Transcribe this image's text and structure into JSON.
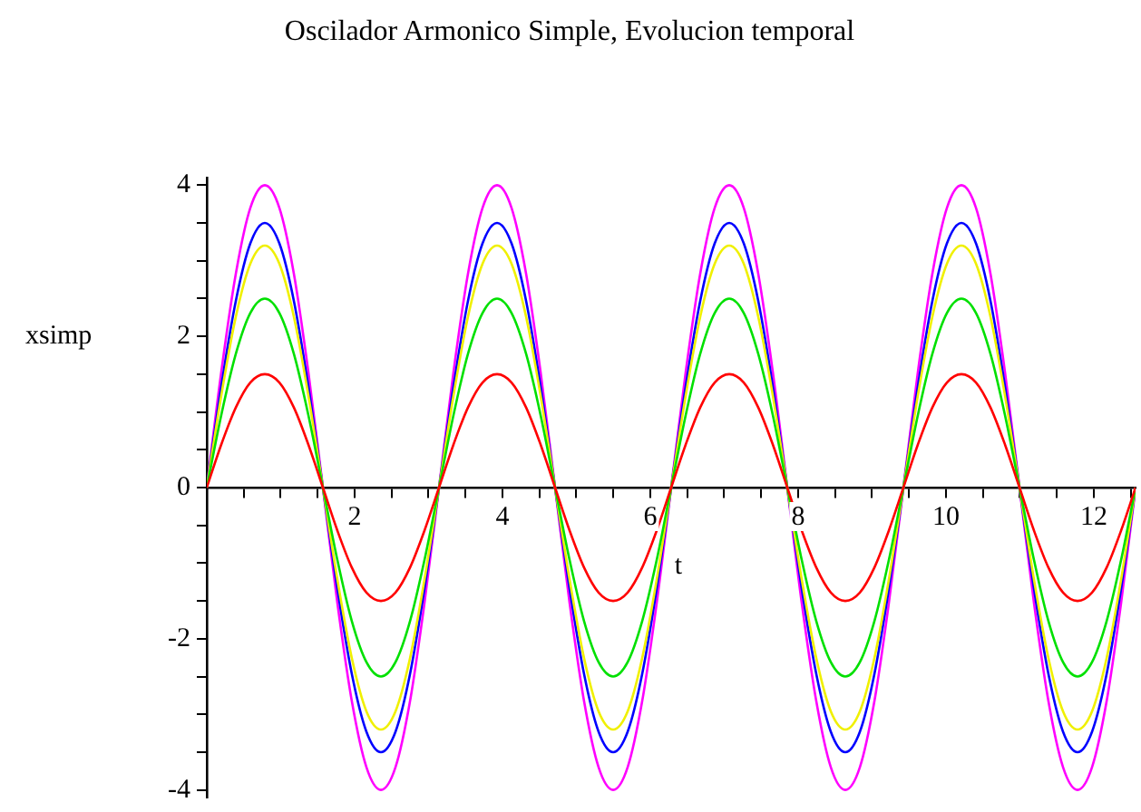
{
  "chart_data": {
    "type": "line",
    "title": "Oscilador Armonico Simple, Evolucion temporal",
    "xlabel": "t",
    "ylabel": "xsimp",
    "x": [
      0,
      0.196,
      0.393,
      0.589,
      0.785,
      0.982,
      1.178,
      1.374,
      1.571,
      1.767,
      1.963,
      2.16,
      2.356,
      2.553,
      2.749,
      2.945,
      3.142,
      3.338,
      3.534,
      3.731,
      3.927,
      4.123,
      4.32,
      4.516,
      4.712,
      4.909,
      5.105,
      5.301,
      5.498,
      5.694,
      5.89,
      6.087,
      6.283,
      6.48,
      6.676,
      6.872,
      7.069,
      7.265,
      7.461,
      7.658,
      7.854,
      8.05,
      8.247,
      8.443,
      8.639,
      8.836,
      9.032,
      9.228,
      9.425,
      9.621,
      9.817,
      10.014,
      10.21,
      10.407,
      10.603,
      10.799,
      10.996,
      11.192,
      11.388,
      11.585,
      11.781,
      11.977,
      12.174,
      12.37,
      12.566
    ],
    "series": [
      {
        "color": "#ff0000",
        "values": [
          0,
          0.57,
          1.06,
          1.39,
          1.5,
          1.39,
          1.06,
          0.57,
          0,
          -0.57,
          -1.06,
          -1.39,
          -1.5,
          -1.39,
          -1.06,
          -0.57,
          0,
          0.57,
          1.06,
          1.39,
          1.5,
          1.39,
          1.06,
          0.57,
          0,
          -0.57,
          -1.06,
          -1.39,
          -1.5,
          -1.39,
          -1.06,
          -0.57,
          0,
          0.57,
          1.06,
          1.39,
          1.5,
          1.39,
          1.06,
          0.57,
          0,
          -0.57,
          -1.06,
          -1.39,
          -1.5,
          -1.39,
          -1.06,
          -0.57,
          0,
          0.57,
          1.06,
          1.39,
          1.5,
          1.39,
          1.06,
          0.57,
          0,
          -0.57,
          -1.06,
          -1.39,
          -1.5,
          -1.39,
          -1.06,
          -0.57,
          0
        ]
      },
      {
        "color": "#00e000",
        "values": [
          0,
          0.96,
          1.77,
          2.31,
          2.5,
          2.31,
          1.77,
          0.96,
          0,
          -0.96,
          -1.77,
          -2.31,
          -2.5,
          -2.31,
          -1.77,
          -0.96,
          0,
          0.96,
          1.77,
          2.31,
          2.5,
          2.31,
          1.77,
          0.96,
          0,
          -0.96,
          -1.77,
          -2.31,
          -2.5,
          -2.31,
          -1.77,
          -0.96,
          0,
          0.96,
          1.77,
          2.31,
          2.5,
          2.31,
          1.77,
          0.96,
          0,
          -0.96,
          -1.77,
          -2.31,
          -2.5,
          -2.31,
          -1.77,
          -0.96,
          0,
          0.96,
          1.77,
          2.31,
          2.5,
          2.31,
          1.77,
          0.96,
          0,
          -0.96,
          -1.77,
          -2.31,
          -2.5,
          -2.31,
          -1.77,
          -0.96,
          0
        ]
      },
      {
        "color": "#f0f000",
        "values": [
          0,
          1.22,
          2.26,
          2.96,
          3.2,
          2.96,
          2.26,
          1.22,
          0,
          -1.22,
          -2.26,
          -2.96,
          -3.2,
          -2.96,
          -2.26,
          -1.22,
          0,
          1.22,
          2.26,
          2.96,
          3.2,
          2.96,
          2.26,
          1.22,
          0,
          -1.22,
          -2.26,
          -2.96,
          -3.2,
          -2.96,
          -2.26,
          -1.22,
          0,
          1.22,
          2.26,
          2.96,
          3.2,
          2.96,
          2.26,
          1.22,
          0,
          -1.22,
          -2.26,
          -2.96,
          -3.2,
          -2.96,
          -2.26,
          -1.22,
          0,
          1.22,
          2.26,
          2.96,
          3.2,
          2.96,
          2.26,
          1.22,
          0,
          -1.22,
          -2.26,
          -2.96,
          -3.2,
          -2.96,
          -2.26,
          -1.22,
          0
        ]
      },
      {
        "color": "#0000ff",
        "values": [
          0,
          1.34,
          2.47,
          3.23,
          3.5,
          3.23,
          2.47,
          1.34,
          0,
          -1.34,
          -2.47,
          -3.23,
          -3.5,
          -3.23,
          -2.47,
          -1.34,
          0,
          1.34,
          2.47,
          3.23,
          3.5,
          3.23,
          2.47,
          1.34,
          0,
          -1.34,
          -2.47,
          -3.23,
          -3.5,
          -3.23,
          -2.47,
          -1.34,
          0,
          1.34,
          2.47,
          3.23,
          3.5,
          3.23,
          2.47,
          1.34,
          0,
          -1.34,
          -2.47,
          -3.23,
          -3.5,
          -3.23,
          -2.47,
          -1.34,
          0,
          1.34,
          2.47,
          3.23,
          3.5,
          3.23,
          2.47,
          1.34,
          0,
          -1.34,
          -2.47,
          -3.23,
          -3.5,
          -3.23,
          -2.47,
          -1.34,
          0
        ]
      },
      {
        "color": "#ff00ff",
        "values": [
          0,
          1.53,
          2.83,
          3.7,
          4,
          3.7,
          2.83,
          1.53,
          0,
          -1.53,
          -2.83,
          -3.7,
          -4,
          -3.7,
          -2.83,
          -1.53,
          0,
          1.53,
          2.83,
          3.7,
          4,
          3.7,
          2.83,
          1.53,
          0,
          -1.53,
          -2.83,
          -3.7,
          -4,
          -3.7,
          -2.83,
          -1.53,
          0,
          1.53,
          2.83,
          3.7,
          4,
          3.7,
          2.83,
          1.53,
          0,
          -1.53,
          -2.83,
          -3.7,
          -4,
          -3.7,
          -2.83,
          -1.53,
          0,
          1.53,
          2.83,
          3.7,
          4,
          3.7,
          2.83,
          1.53,
          0,
          -1.53,
          -2.83,
          -3.7,
          -4,
          -3.7,
          -2.83,
          -1.53,
          0
        ]
      }
    ],
    "xlim": [
      0,
      12.566
    ],
    "xticks": [
      {
        "value": 0.5,
        "label": null
      },
      {
        "value": 1,
        "label": null
      },
      {
        "value": 1.5,
        "label": null
      },
      2,
      {
        "value": 2.5,
        "label": null
      },
      {
        "value": 3,
        "label": null
      },
      {
        "value": 3.5,
        "label": null
      },
      4,
      {
        "value": 4.5,
        "label": null
      },
      {
        "value": 5,
        "label": null
      },
      {
        "value": 5.5,
        "label": null
      },
      6,
      {
        "value": 6.5,
        "label": null
      },
      {
        "value": 7,
        "label": null
      },
      {
        "value": 7.5,
        "label": null
      },
      8,
      {
        "value": 8.5,
        "label": null
      },
      {
        "value": 9,
        "label": null
      },
      {
        "value": 9.5,
        "label": null
      },
      10,
      {
        "value": 10.5,
        "label": null
      },
      {
        "value": 11,
        "label": null
      },
      {
        "value": 11.5,
        "label": null
      },
      12,
      {
        "value": 12.5,
        "label": null
      }
    ],
    "ylim": [
      -4.1,
      4.1
    ],
    "yticks": [
      -4,
      {
        "value": -3.5,
        "label": null
      },
      {
        "value": -3,
        "label": null
      },
      {
        "value": -2.5,
        "label": null
      },
      -2,
      {
        "value": -1.5,
        "label": null
      },
      {
        "value": -1,
        "label": null
      },
      {
        "value": -0.5,
        "label": null
      },
      0,
      {
        "value": 0.5,
        "label": null
      },
      {
        "value": 1,
        "label": null
      },
      {
        "value": 1.5,
        "label": null
      },
      2,
      {
        "value": 2.5,
        "label": null
      },
      {
        "value": 3,
        "label": null
      },
      {
        "value": 3.5,
        "label": null
      },
      4
    ],
    "grid": false,
    "legend": false,
    "marker": "none",
    "line_style": "solid"
  }
}
